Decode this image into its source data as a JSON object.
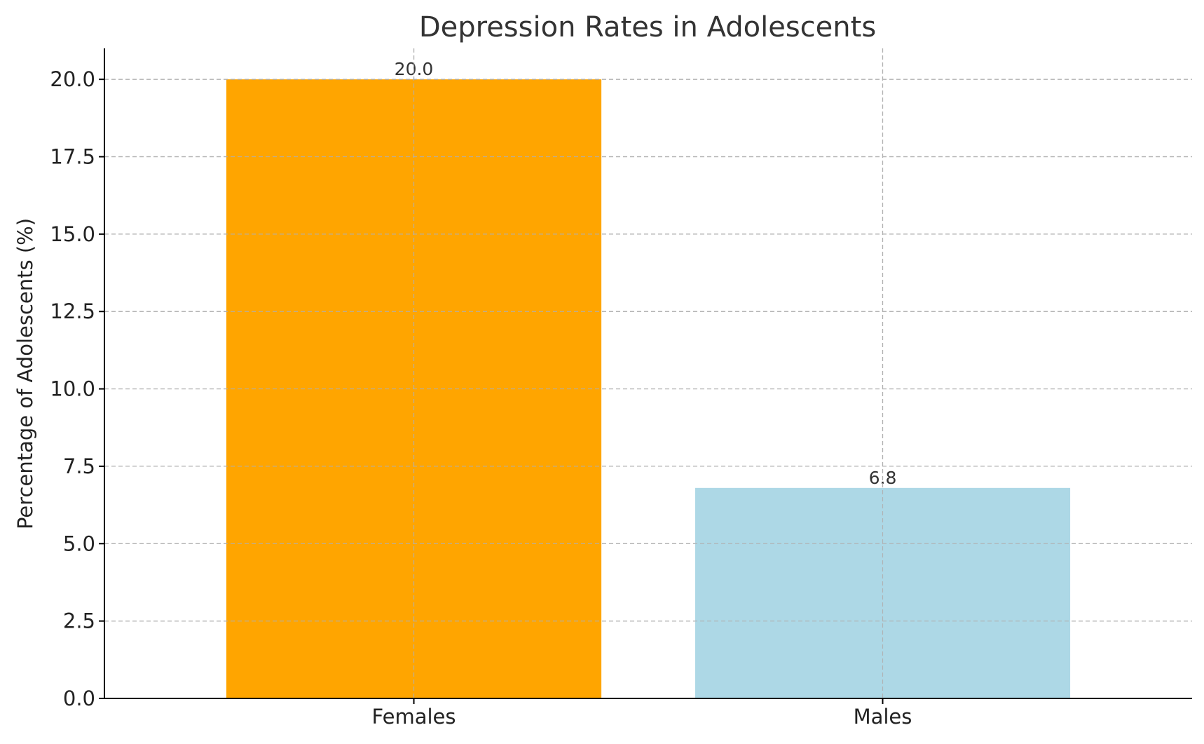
{
  "chart_data": {
    "type": "bar",
    "title": "Depression Rates in Adolescents",
    "xlabel": "",
    "ylabel": "Percentage of Adolescents (%)",
    "categories": [
      "Females",
      "Males"
    ],
    "values": [
      20.0,
      6.8
    ],
    "value_labels": [
      "20.0",
      "6.8"
    ],
    "colors": [
      "#FFA500",
      "#ADD8E6"
    ],
    "ylim": [
      0,
      21
    ],
    "yticks": [
      0.0,
      2.5,
      5.0,
      7.5,
      10.0,
      12.5,
      15.0,
      17.5,
      20.0
    ],
    "ytick_labels": [
      "0.0",
      "2.5",
      "5.0",
      "7.5",
      "10.0",
      "12.5",
      "15.0",
      "17.5",
      "20.0"
    ],
    "grid": true,
    "legend": "none"
  }
}
